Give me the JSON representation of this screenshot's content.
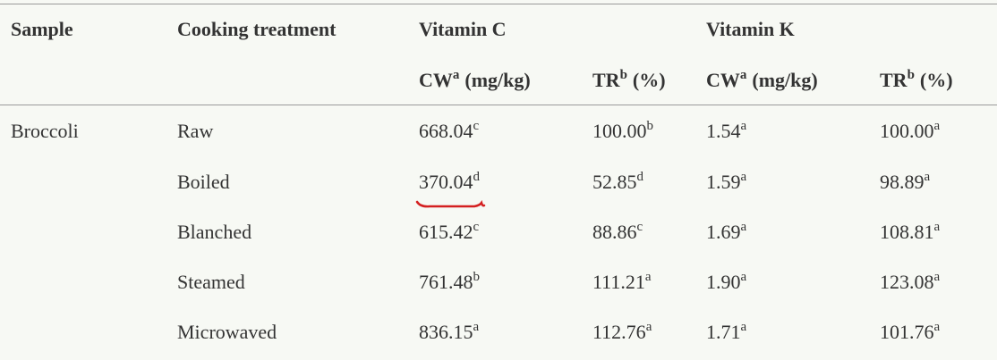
{
  "table": {
    "header": {
      "sample": "Sample",
      "treatment": "Cooking treatment",
      "groups": [
        "Vitamin C",
        "Vitamin K"
      ],
      "subheaders": [
        {
          "text": "CW",
          "sup": "a",
          "unit": "(mg/kg)"
        },
        {
          "text": "TR",
          "sup": "b",
          "unit": "(%)"
        },
        {
          "text": "CW",
          "sup": "a",
          "unit": "(mg/kg)"
        },
        {
          "text": "TR",
          "sup": "b",
          "unit": "(%)"
        }
      ]
    },
    "rows": [
      {
        "sample": "Broccoli",
        "treatment": "Raw",
        "cells": [
          {
            "text": "668.04",
            "sup": "c"
          },
          {
            "text": "100.00",
            "sup": "b"
          },
          {
            "text": "1.54",
            "sup": "a"
          },
          {
            "text": "100.00",
            "sup": "a"
          }
        ]
      },
      {
        "treatment": "Boiled",
        "cells": [
          {
            "text": "370.04",
            "sup": "d"
          },
          {
            "text": "52.85",
            "sup": "d"
          },
          {
            "text": "1.59",
            "sup": "a"
          },
          {
            "text": "98.89",
            "sup": "a"
          }
        ]
      },
      {
        "treatment": "Blanched",
        "cells": [
          {
            "text": "615.42",
            "sup": "c"
          },
          {
            "text": "88.86",
            "sup": "c"
          },
          {
            "text": "1.69",
            "sup": "a"
          },
          {
            "text": "108.81",
            "sup": "a"
          }
        ]
      },
      {
        "treatment": "Steamed",
        "cells": [
          {
            "text": "761.48",
            "sup": "b"
          },
          {
            "text": "111.21",
            "sup": "a"
          },
          {
            "text": "1.90",
            "sup": "a"
          },
          {
            "text": "123.08",
            "sup": "a"
          }
        ]
      },
      {
        "treatment": "Microwaved",
        "cells": [
          {
            "text": "836.15",
            "sup": "a"
          },
          {
            "text": "112.76",
            "sup": "a"
          },
          {
            "text": "1.71",
            "sup": "a"
          },
          {
            "text": "101.76",
            "sup": "a"
          }
        ]
      }
    ]
  }
}
